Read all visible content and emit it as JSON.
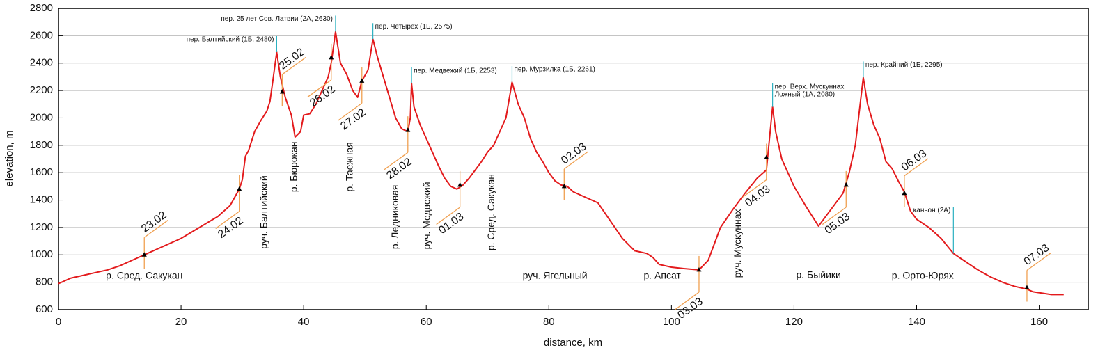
{
  "chart_data": {
    "type": "line",
    "xlabel": "distance, km",
    "ylabel": "elevation, m",
    "xlim": [
      0,
      168
    ],
    "ylim": [
      600,
      2800
    ],
    "xticks": [
      0,
      20,
      40,
      60,
      80,
      100,
      120,
      140,
      160
    ],
    "yticks": [
      600,
      800,
      1000,
      1200,
      1400,
      1600,
      1800,
      2000,
      2200,
      2400,
      2600,
      2800
    ],
    "grid": true,
    "x": [
      0,
      2,
      5,
      8,
      10,
      12,
      14,
      17,
      20,
      23,
      26,
      28,
      29.5,
      30,
      30.5,
      31,
      32,
      33,
      34,
      34.5,
      35,
      35.6,
      36.2,
      37,
      38,
      38.6,
      39.5,
      40,
      41,
      42,
      43,
      44,
      44.5,
      45.2,
      46,
      47,
      48,
      48.8,
      49.5,
      50.5,
      51.3,
      52,
      53,
      54,
      55,
      56,
      57,
      57.4,
      57.6,
      58,
      59,
      60,
      61,
      62,
      63,
      64,
      65,
      66,
      67,
      68,
      69,
      70,
      71,
      72,
      73,
      74,
      75,
      76,
      77,
      78,
      79,
      80,
      81,
      82,
      83,
      84,
      86,
      88,
      90,
      92,
      94,
      96,
      97,
      98,
      100,
      102,
      104.5,
      106,
      107,
      108,
      110,
      112,
      114,
      115.5,
      116.5,
      117,
      118,
      120,
      122,
      124,
      126,
      128,
      129,
      130,
      131.3,
      132,
      133,
      134,
      135,
      136,
      137,
      138,
      139,
      140,
      142,
      144,
      146,
      148,
      150,
      152,
      154,
      156,
      158,
      159,
      162,
      164
    ],
    "series": [
      {
        "color": "#e31a1c",
        "values": [
          790,
          830,
          860,
          890,
          920,
          960,
          1000,
          1060,
          1120,
          1200,
          1280,
          1360,
          1480,
          1550,
          1720,
          1760,
          1900,
          1980,
          2050,
          2120,
          2280,
          2480,
          2300,
          2150,
          2020,
          1860,
          1900,
          2020,
          2030,
          2100,
          2200,
          2300,
          2400,
          2630,
          2400,
          2320,
          2200,
          2150,
          2270,
          2350,
          2575,
          2450,
          2300,
          2150,
          2000,
          1920,
          1900,
          2000,
          2253,
          2080,
          1950,
          1850,
          1750,
          1650,
          1560,
          1500,
          1480,
          1510,
          1560,
          1620,
          1680,
          1750,
          1800,
          1900,
          2000,
          2261,
          2100,
          2000,
          1850,
          1750,
          1680,
          1600,
          1540,
          1510,
          1500,
          1460,
          1420,
          1380,
          1250,
          1120,
          1030,
          1010,
          980,
          930,
          910,
          900,
          890,
          960,
          1080,
          1200,
          1330,
          1450,
          1560,
          1620,
          2080,
          1900,
          1700,
          1500,
          1350,
          1210,
          1330,
          1450,
          1600,
          1800,
          2295,
          2100,
          1950,
          1850,
          1680,
          1630,
          1540,
          1460,
          1320,
          1260,
          1200,
          1120,
          1010,
          950,
          890,
          840,
          800,
          770,
          750,
          730,
          710,
          710
        ]
      }
    ],
    "passes": [
      {
        "lines": [
          "пер. Балтийский (1Б, 2480)"
        ],
        "x": 35.6,
        "y": 2480,
        "side": "left"
      },
      {
        "lines": [
          "пер. 25 лет Сов. Латвии (2А, 2630)"
        ],
        "x": 45.2,
        "y": 2630,
        "side": "left"
      },
      {
        "lines": [
          "пер. Четырех (1Б, 2575)"
        ],
        "x": 51.3,
        "y": 2575,
        "side": "right"
      },
      {
        "lines": [
          "пер. Медвежий (1Б, 2253)"
        ],
        "x": 57.6,
        "y": 2253,
        "side": "right"
      },
      {
        "lines": [
          "пер. Мурзилка (1Б, 2261)"
        ],
        "x": 74,
        "y": 2261,
        "side": "right"
      },
      {
        "lines": [
          "пер. Верх. Мускуннах",
          "Ложный (1А, 2080)"
        ],
        "x": 116.5,
        "y": 2080,
        "side": "right"
      },
      {
        "lines": [
          "пер. Крайний (1Б, 2295)"
        ],
        "x": 131.3,
        "y": 2295,
        "side": "right"
      }
    ],
    "annotation": {
      "label": "каньон (2А)",
      "x": 146,
      "y": 1010,
      "y_top": 1350
    },
    "rivers": [
      {
        "label": "р. Сред. Сакукан",
        "x": 14,
        "y": 844,
        "rotated": false
      },
      {
        "label": "руч. Балтийский",
        "x": 33.6,
        "y": 1311,
        "rotated": true
      },
      {
        "label": "р. Бюрокан",
        "x": 38.5,
        "y": 1642,
        "rotated": true
      },
      {
        "label": "р. Таежная",
        "x": 47.6,
        "y": 1642,
        "rotated": true
      },
      {
        "label": "р. Ледниковая",
        "x": 55,
        "y": 1276,
        "rotated": true
      },
      {
        "label": "руч. Медвежий",
        "x": 60.2,
        "y": 1286,
        "rotated": true
      },
      {
        "label": "р. Сред. Сакукан",
        "x": 70.7,
        "y": 1311,
        "rotated": true
      },
      {
        "label": "руч. Ягельный",
        "x": 81,
        "y": 844,
        "rotated": false
      },
      {
        "label": "р. Апсат",
        "x": 98.5,
        "y": 844,
        "rotated": false
      },
      {
        "label": "руч. Мускуннах",
        "x": 110.9,
        "y": 1083,
        "rotated": true
      },
      {
        "label": "р. Быйики",
        "x": 124,
        "y": 850,
        "rotated": false
      },
      {
        "label": "р. Орто-Юрях",
        "x": 141,
        "y": 844,
        "rotated": false
      }
    ],
    "dates": [
      {
        "label": "23.02",
        "x": 14,
        "y": 1000,
        "side": "above"
      },
      {
        "label": "24.02",
        "x": 29.5,
        "y": 1480,
        "side": "below"
      },
      {
        "label": "25.02",
        "x": 36.5,
        "y": 2190,
        "side": "above"
      },
      {
        "label": "26.02",
        "x": 44.5,
        "y": 2440,
        "side": "below"
      },
      {
        "label": "27.02",
        "x": 49.5,
        "y": 2270,
        "side": "below"
      },
      {
        "label": "28.02",
        "x": 57,
        "y": 1910,
        "side": "below"
      },
      {
        "label": "01.03",
        "x": 65.5,
        "y": 1510,
        "side": "below"
      },
      {
        "label": "02.03",
        "x": 82.5,
        "y": 1500,
        "side": "above"
      },
      {
        "label": "03.03",
        "x": 104.5,
        "y": 890,
        "side": "below"
      },
      {
        "label": "04.03",
        "x": 115.5,
        "y": 1710,
        "side": "below"
      },
      {
        "label": "05.03",
        "x": 128.5,
        "y": 1510,
        "side": "below"
      },
      {
        "label": "06.03",
        "x": 138,
        "y": 1450,
        "side": "above"
      },
      {
        "label": "07.03",
        "x": 158,
        "y": 760,
        "side": "above"
      }
    ]
  }
}
